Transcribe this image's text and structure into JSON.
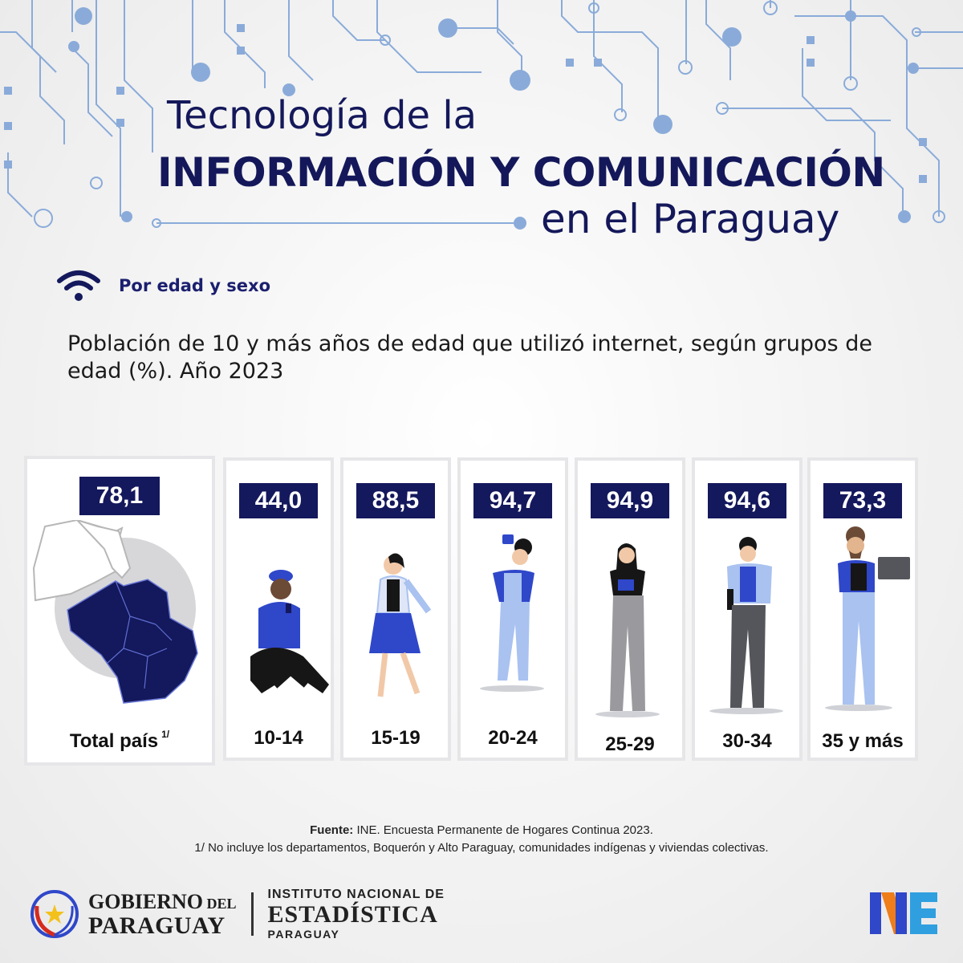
{
  "header": {
    "title_line1": "Tecnología de la",
    "title_line2": "INFORMACIÓN  Y COMUNICACIÓN",
    "title_line3": "en el Paraguay"
  },
  "section": {
    "label": "Por edad y sexo",
    "icon": "wifi-icon"
  },
  "description": "Población de 10 y más años de edad que utilizó internet, según grupos de edad (%). Año 2023",
  "colors": {
    "navy": "#14185c",
    "blue": "#2f47c9",
    "light_blue": "#a9c2f0",
    "circuit": "#8aabd9"
  },
  "chart_data": {
    "type": "table",
    "title": "Población de 10 y más años de edad que utilizó internet, según grupos de edad (%). Año 2023",
    "categories": [
      "Total país",
      "10-14",
      "15-19",
      "20-24",
      "25-29",
      "30-34",
      "35 y más"
    ],
    "values": [
      78.1,
      44.0,
      88.5,
      94.7,
      94.9,
      94.6,
      73.3
    ]
  },
  "cards": [
    {
      "value": "78,1",
      "label": "Total país",
      "note": "1/"
    },
    {
      "value": "44,0",
      "label": "10-14"
    },
    {
      "value": "88,5",
      "label": "15-19"
    },
    {
      "value": "94,7",
      "label": "20-24"
    },
    {
      "value": "94,9",
      "label": "25-29"
    },
    {
      "value": "94,6",
      "label": "30-34"
    },
    {
      "value": "73,3",
      "label": "35 y más"
    }
  ],
  "source": {
    "label": "Fuente:",
    "text": " INE. Encuesta Permanente de Hogares Continua 2023.",
    "note": "1/ No incluye los departamentos, Boquerón y Alto Paraguay, comunidades indígenas y viviendas colectivas."
  },
  "footer": {
    "gob_line1": "GOBIERNO",
    "gob_line1_small": " DEL",
    "gob_line2": "PARAGUAY",
    "ine_line1": "INSTITUTO NACIONAL DE",
    "ine_line2": "ESTADÍSTICA",
    "ine_line3": "PARAGUAY"
  }
}
